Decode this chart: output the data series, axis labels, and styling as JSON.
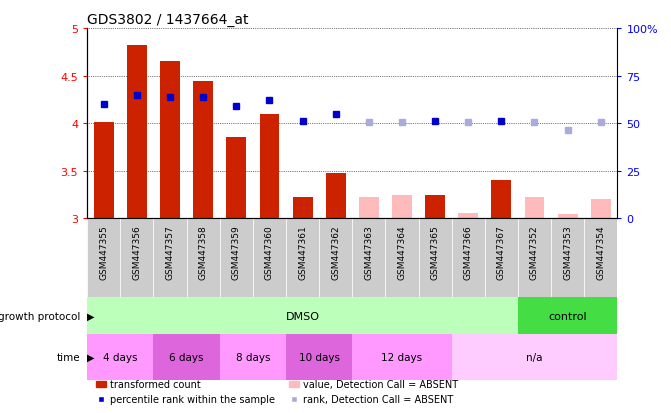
{
  "title": "GDS3802 / 1437664_at",
  "samples": [
    "GSM447355",
    "GSM447356",
    "GSM447357",
    "GSM447358",
    "GSM447359",
    "GSM447360",
    "GSM447361",
    "GSM447362",
    "GSM447363",
    "GSM447364",
    "GSM447365",
    "GSM447366",
    "GSM447367",
    "GSM447352",
    "GSM447353",
    "GSM447354"
  ],
  "bar_values": [
    4.01,
    4.82,
    4.65,
    4.44,
    3.86,
    4.1,
    3.22,
    3.48,
    null,
    null,
    3.25,
    null,
    3.4,
    null,
    null,
    null
  ],
  "bar_absent_values": [
    null,
    null,
    null,
    null,
    null,
    null,
    null,
    null,
    3.22,
    3.25,
    null,
    3.06,
    null,
    3.22,
    3.05,
    3.2
  ],
  "dot_values": [
    4.2,
    4.3,
    4.27,
    4.27,
    4.18,
    4.24,
    4.02,
    4.1,
    null,
    null,
    4.02,
    null,
    4.02,
    null,
    null,
    null
  ],
  "dot_absent_values": [
    null,
    null,
    null,
    null,
    null,
    null,
    null,
    null,
    4.01,
    4.01,
    null,
    4.01,
    null,
    4.01,
    3.93,
    4.01
  ],
  "ylim": [
    3.0,
    5.0
  ],
  "yticks": [
    3.0,
    3.5,
    4.0,
    4.5,
    5.0
  ],
  "ytick_labels": [
    "3",
    "3.5",
    "4",
    "4.5",
    "5"
  ],
  "y2lim": [
    0,
    100
  ],
  "y2ticks": [
    0,
    25,
    50,
    75,
    100
  ],
  "y2tick_labels": [
    "0",
    "25",
    "50",
    "75",
    "100%"
  ],
  "bar_color_present": "#cc2200",
  "bar_color_absent": "#ffbbbb",
  "dot_color_present": "#0000cc",
  "dot_color_absent": "#aaaadd",
  "growth_protocol_label": "growth protocol",
  "time_label": "time",
  "dmso_label": "DMSO",
  "control_label": "control",
  "dmso_color": "#bbffbb",
  "control_color": "#44dd44",
  "time_groups": [
    {
      "label": "4 days",
      "start": 0,
      "end": 2,
      "color": "#ff99ff"
    },
    {
      "label": "6 days",
      "start": 2,
      "end": 4,
      "color": "#dd66dd"
    },
    {
      "label": "8 days",
      "start": 4,
      "end": 6,
      "color": "#ff99ff"
    },
    {
      "label": "10 days",
      "start": 6,
      "end": 8,
      "color": "#dd66dd"
    },
    {
      "label": "12 days",
      "start": 8,
      "end": 11,
      "color": "#ff99ff"
    },
    {
      "label": "n/a",
      "start": 11,
      "end": 16,
      "color": "#ffccff"
    }
  ],
  "dmso_range": [
    0,
    13
  ],
  "control_range": [
    13,
    16
  ],
  "sample_box_color": "#cccccc",
  "legend_items": [
    {
      "label": "transformed count",
      "color": "#cc2200",
      "type": "bar"
    },
    {
      "label": "percentile rank within the sample",
      "color": "#0000cc",
      "type": "dot"
    },
    {
      "label": "value, Detection Call = ABSENT",
      "color": "#ffbbbb",
      "type": "bar"
    },
    {
      "label": "rank, Detection Call = ABSENT",
      "color": "#aaaadd",
      "type": "dot"
    }
  ]
}
